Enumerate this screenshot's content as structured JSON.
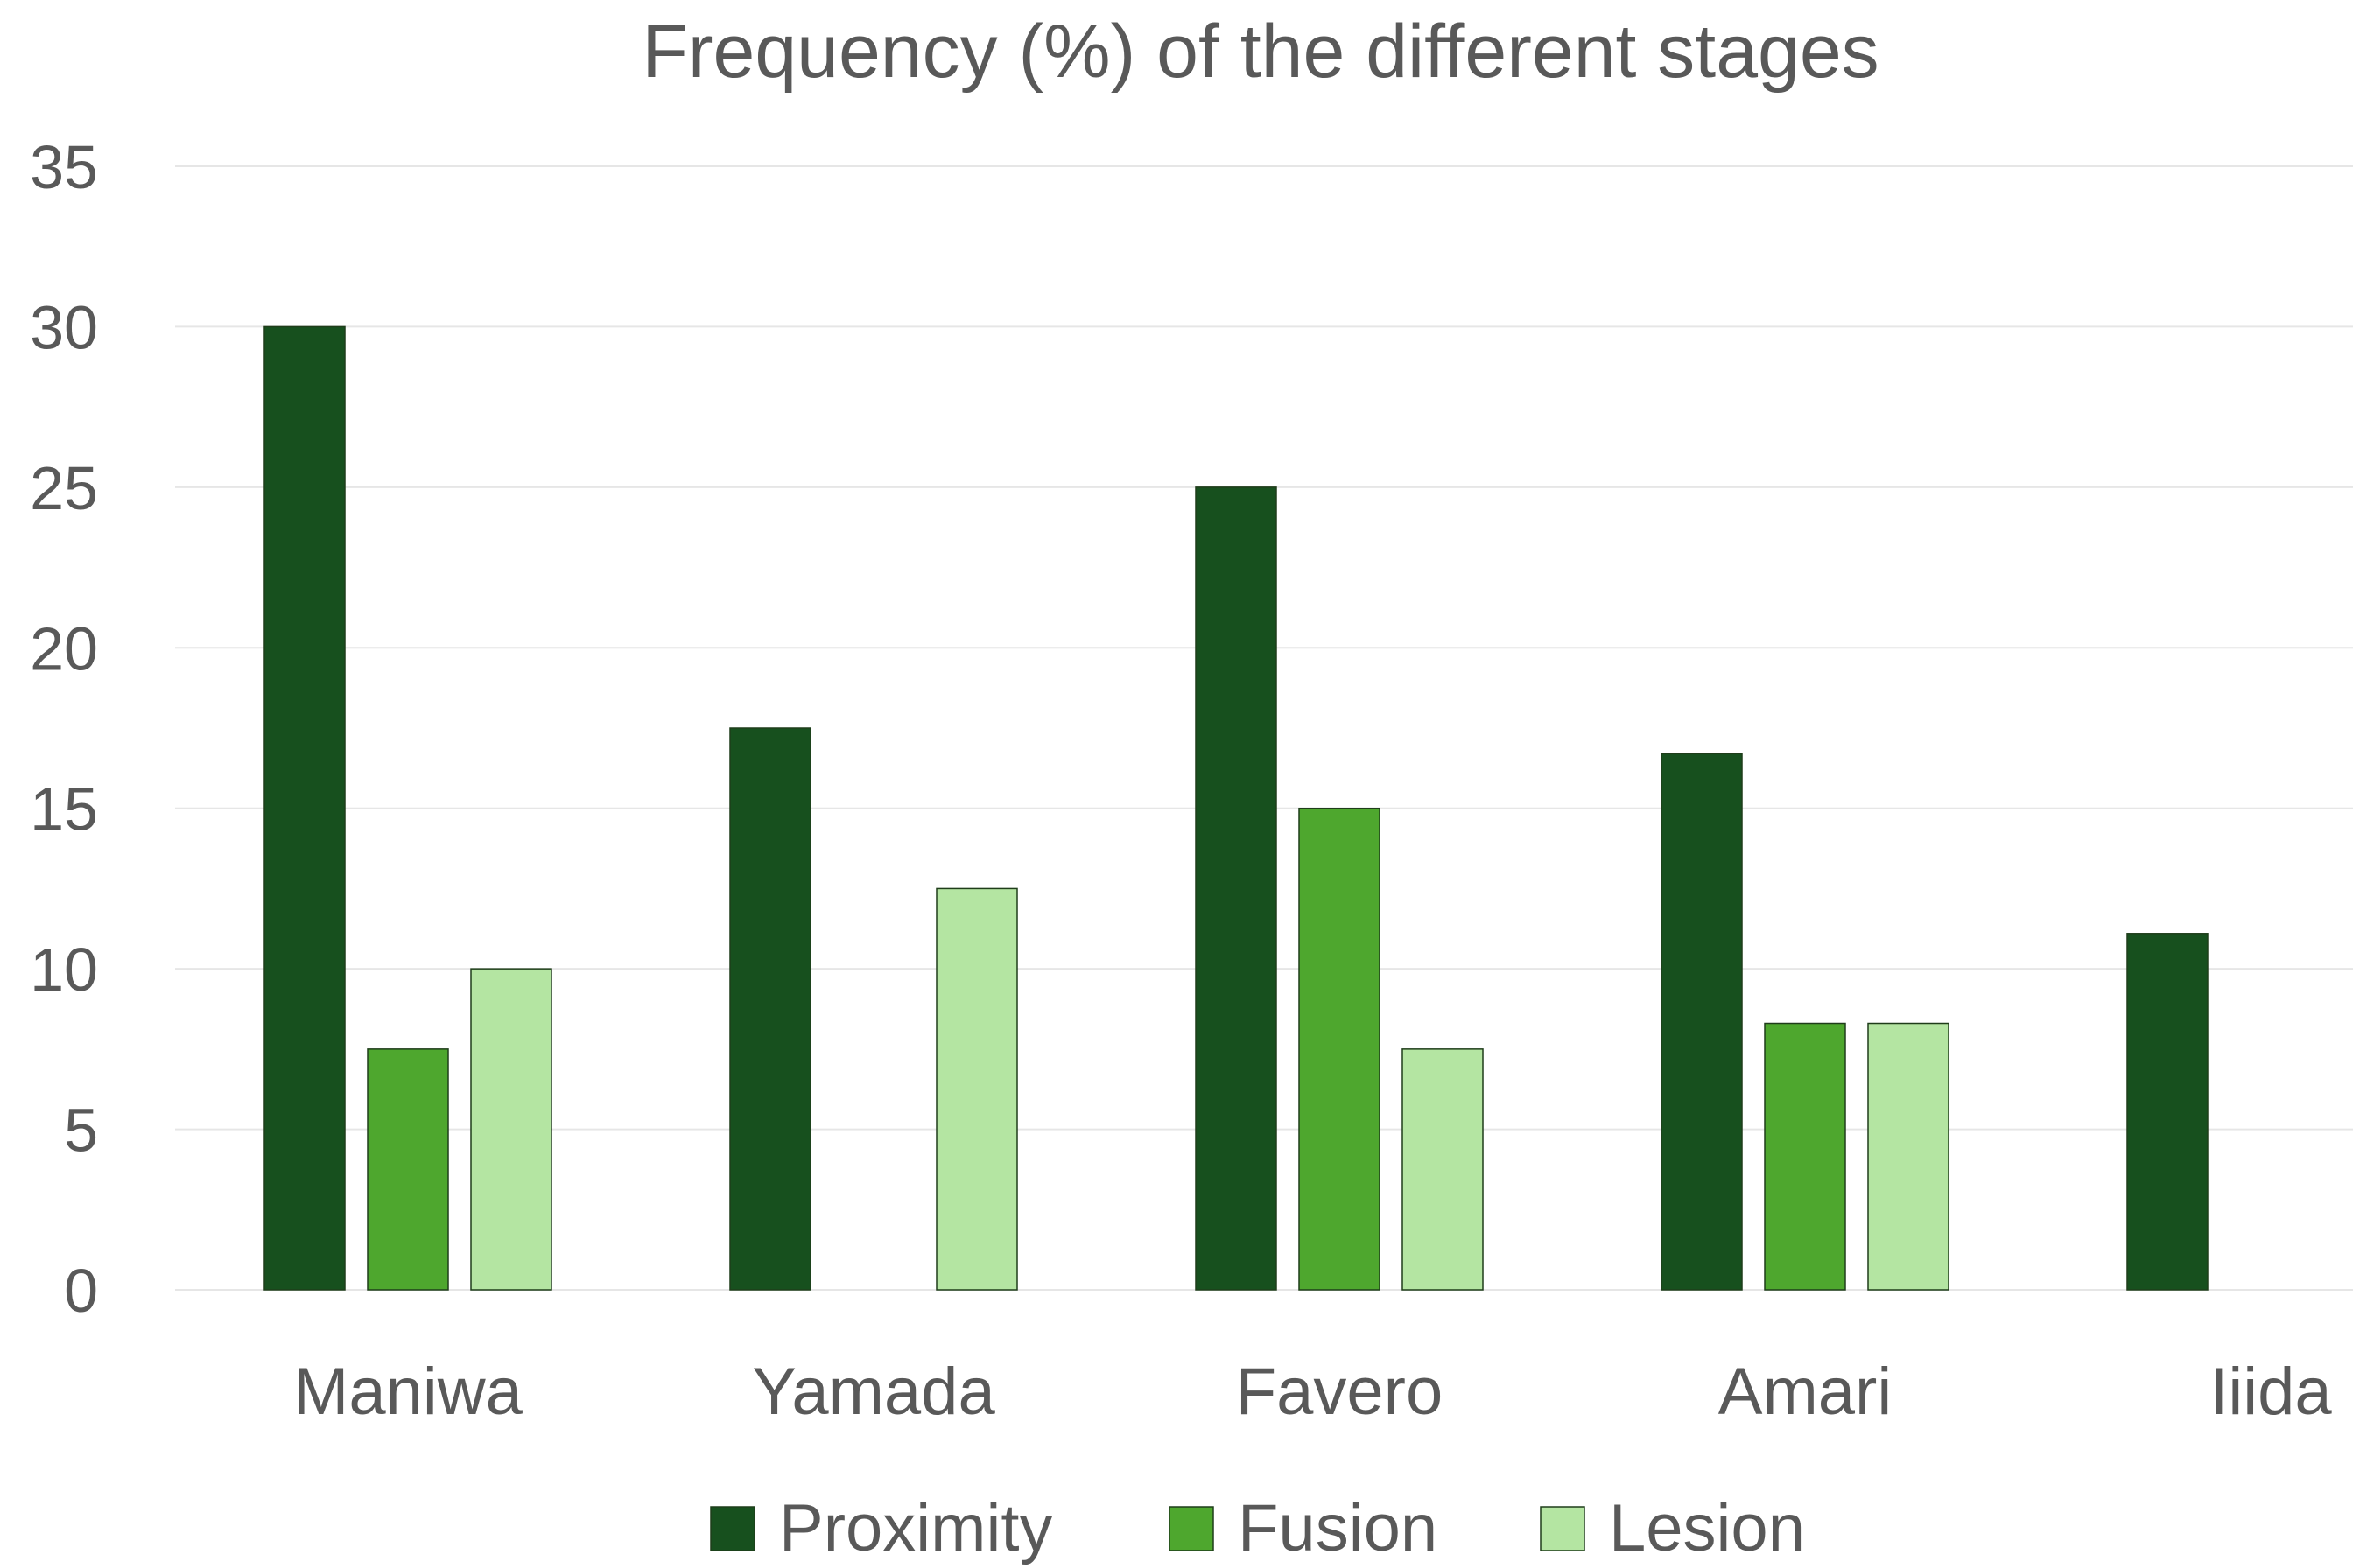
{
  "chart_data": {
    "type": "bar",
    "title": "Frequency (%) of the different stages",
    "xlabel": "",
    "ylabel": "",
    "categories": [
      "Maniwa",
      "Yamada",
      "Favero",
      "Amari",
      "Iiida"
    ],
    "series": [
      {
        "name": "Proximity",
        "values": [
          30,
          17.5,
          25,
          16.7,
          11.1
        ],
        "color": "#17501e"
      },
      {
        "name": "Fusion",
        "values": [
          7.5,
          0,
          15,
          8.3,
          0
        ],
        "color": "#4ea72e"
      },
      {
        "name": "Lesion",
        "values": [
          10,
          12.5,
          7.5,
          8.3,
          0
        ],
        "color": "#b4e5a2"
      }
    ],
    "ylim": [
      0,
      35
    ],
    "yticks": [
      0,
      5,
      10,
      15,
      20,
      25,
      30,
      35
    ],
    "grid": true,
    "legend_position": "bottom"
  }
}
